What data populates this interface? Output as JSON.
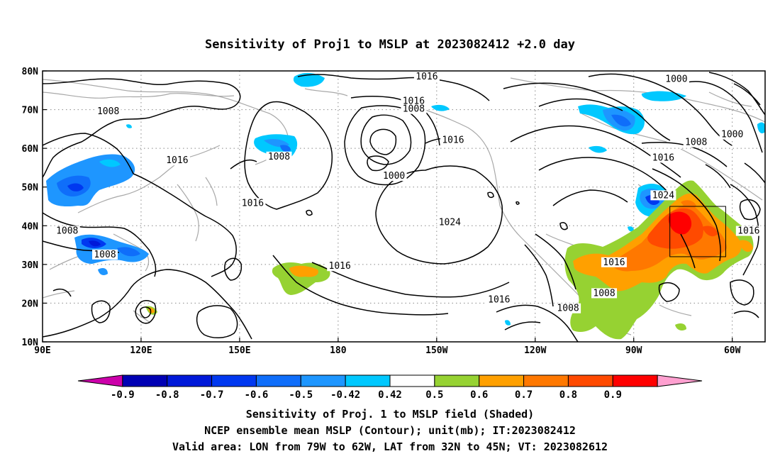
{
  "title": "Sensitivity of Proj1 to MSLP at 2023082412 +2.0 day",
  "map": {
    "lon_range": [
      90,
      310
    ],
    "lat_range": [
      10,
      80
    ],
    "lat_ticks": [
      {
        "lat": 80,
        "label": "80N"
      },
      {
        "lat": 70,
        "label": "70N"
      },
      {
        "lat": 60,
        "label": "60N"
      },
      {
        "lat": 50,
        "label": "50N"
      },
      {
        "lat": 40,
        "label": "40N"
      },
      {
        "lat": 30,
        "label": "30N"
      },
      {
        "lat": 20,
        "label": "20N"
      },
      {
        "lat": 10,
        "label": "10N"
      }
    ],
    "lon_ticks": [
      {
        "lon": 90,
        "label": "90E"
      },
      {
        "lon": 120,
        "label": "120E"
      },
      {
        "lon": 150,
        "label": "150E"
      },
      {
        "lon": 180,
        "label": "180"
      },
      {
        "lon": 210,
        "label": "150W"
      },
      {
        "lon": 240,
        "label": "120W"
      },
      {
        "lon": 270,
        "label": "90W"
      },
      {
        "lon": 300,
        "label": "60W"
      }
    ],
    "valid_box": {
      "lon_min": 281,
      "lon_max": 298,
      "lat_min": 32,
      "lat_max": 45
    },
    "contour_labels": [
      {
        "text": "1016",
        "lon": 207,
        "lat": 78.2
      },
      {
        "text": "1016",
        "lon": 203,
        "lat": 71.8
      },
      {
        "text": "1008",
        "lon": 203,
        "lat": 69.8
      },
      {
        "text": "1016",
        "lon": 215,
        "lat": 61.8
      },
      {
        "text": "1000",
        "lon": 197,
        "lat": 52.5
      },
      {
        "text": "1024",
        "lon": 214,
        "lat": 40.5
      },
      {
        "text": "1016",
        "lon": 180.5,
        "lat": 29.2
      },
      {
        "text": "1016",
        "lon": 229,
        "lat": 20.5
      },
      {
        "text": "1008",
        "lon": 110,
        "lat": 69.2
      },
      {
        "text": "1016",
        "lon": 131,
        "lat": 56.5
      },
      {
        "text": "1008",
        "lon": 162,
        "lat": 57.5
      },
      {
        "text": "1016",
        "lon": 154,
        "lat": 45.5
      },
      {
        "text": "1008",
        "lon": 97.5,
        "lat": 38.3
      },
      {
        "text": "1008",
        "lon": 109,
        "lat": 32.2
      },
      {
        "text": "1016",
        "lon": 264,
        "lat": 30.2
      },
      {
        "text": "1008",
        "lon": 261,
        "lat": 22.2
      },
      {
        "text": "1008",
        "lon": 250,
        "lat": 18.3
      },
      {
        "text": "1000",
        "lon": 283,
        "lat": 77.5
      },
      {
        "text": "1000",
        "lon": 300,
        "lat": 63.2
      },
      {
        "text": "1008",
        "lon": 289,
        "lat": 61.2
      },
      {
        "text": "1016",
        "lon": 279,
        "lat": 57.2
      },
      {
        "text": "1024",
        "lon": 279,
        "lat": 47.5
      },
      {
        "text": "1016",
        "lon": 305,
        "lat": 38.3
      }
    ]
  },
  "colorbar": {
    "bins": [
      {
        "color": "#cc00aa"
      },
      {
        "color": "#0000b4"
      },
      {
        "color": "#0019d9"
      },
      {
        "color": "#0038f0"
      },
      {
        "color": "#0f6efa"
      },
      {
        "color": "#1e96ff"
      },
      {
        "color": "#00c8ff"
      },
      {
        "color": "#ffffff"
      },
      {
        "color": "#96d232"
      },
      {
        "color": "#ffa000"
      },
      {
        "color": "#ff7800"
      },
      {
        "color": "#ff4a00"
      },
      {
        "color": "#ff0000"
      },
      {
        "color": "#ffa0d0"
      }
    ],
    "labels": [
      "-0.9",
      "-0.8",
      "-0.7",
      "-0.6",
      "-0.5",
      "-0.42",
      "0.42",
      "0.5",
      "0.6",
      "0.7",
      "0.8",
      "0.9"
    ]
  },
  "footer": {
    "line1": "Sensitivity of Proj. 1 to MSLP field (Shaded)",
    "line2": "NCEP ensemble mean MSLP (Contour); unit(mb); IT:2023082412",
    "line3": "Valid area: LON from 79W to 62W, LAT from 32N to 45N; VT: 2023082612"
  }
}
